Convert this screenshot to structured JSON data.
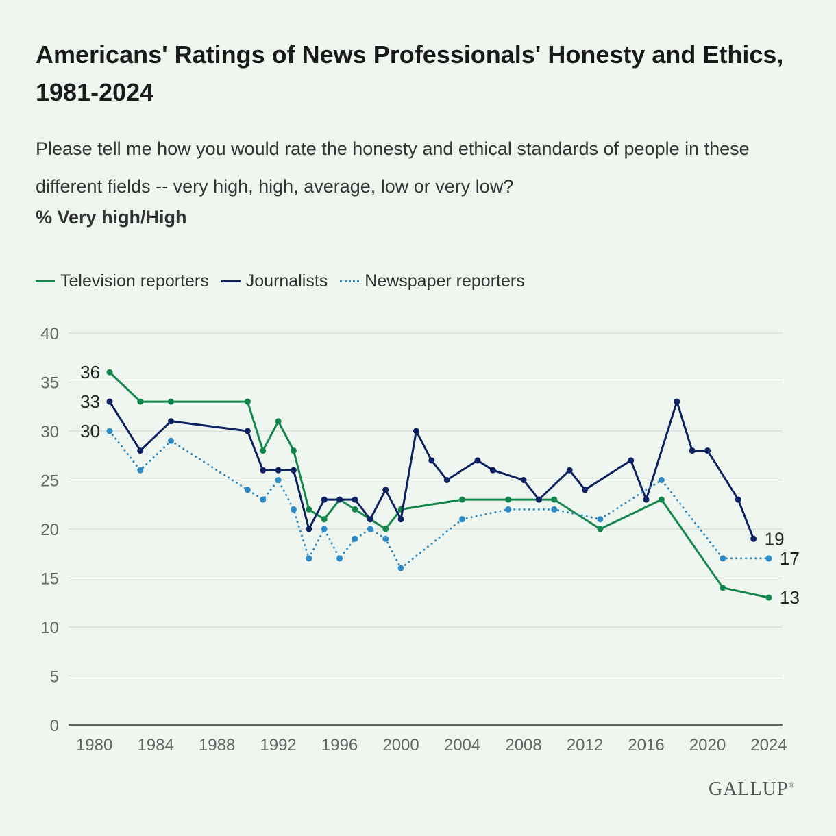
{
  "title": "Americans' Ratings of News Professionals' Honesty and Ethics, 1981-2024",
  "subtitle": "Please tell me how you would rate the honesty and ethical standards of people in these different fields -- very high, high, average, low or very low?",
  "unit_label": "% Very high/High",
  "brand": "GALLUP",
  "brand_mark": "®",
  "chart_data": {
    "type": "line",
    "title": "Americans' Ratings of News Professionals' Honesty and Ethics, 1981-2024",
    "xlabel": "",
    "ylabel": "% Very high/High",
    "xlim": [
      1980,
      2024
    ],
    "ylim": [
      0,
      40
    ],
    "xticks": [
      "1980",
      "1984",
      "1988",
      "1992",
      "1996",
      "2000",
      "2004",
      "2008",
      "2012",
      "2016",
      "2020",
      "2024"
    ],
    "yticks": [
      "0",
      "5",
      "10",
      "15",
      "20",
      "25",
      "30",
      "35",
      "40"
    ],
    "grid": true,
    "legend_position": "top-left",
    "series": [
      {
        "name": "Television reporters",
        "color": "#13874b",
        "style": "solid",
        "x": [
          1981,
          1983,
          1985,
          1990,
          1991,
          1992,
          1993,
          1994,
          1995,
          1996,
          1997,
          1998,
          1999,
          2000,
          2004,
          2007,
          2009,
          2010,
          2013,
          2017,
          2021,
          2024
        ],
        "values": [
          36,
          33,
          33,
          33,
          28,
          31,
          28,
          22,
          21,
          23,
          22,
          21,
          20,
          22,
          23,
          23,
          23,
          23,
          20,
          23,
          14,
          13
        ],
        "labels": [
          {
            "x": 1981,
            "text": "36",
            "side": "left"
          },
          {
            "x": 2024,
            "text": "13",
            "side": "right"
          }
        ]
      },
      {
        "name": "Journalists",
        "color": "#0d2060",
        "style": "solid",
        "x": [
          1981,
          1983,
          1985,
          1990,
          1991,
          1992,
          1993,
          1994,
          1995,
          1996,
          1997,
          1998,
          1999,
          2000,
          2001,
          2002,
          2003,
          2005,
          2006,
          2008,
          2009,
          2011,
          2012,
          2015,
          2016,
          2018,
          2019,
          2020,
          2022,
          2023
        ],
        "values": [
          33,
          28,
          31,
          30,
          26,
          26,
          26,
          20,
          23,
          23,
          23,
          21,
          24,
          21,
          30,
          27,
          25,
          27,
          26,
          25,
          23,
          26,
          24,
          27,
          23,
          33,
          28,
          28,
          23,
          19
        ],
        "labels": [
          {
            "x": 1981,
            "text": "33",
            "side": "left"
          },
          {
            "x": 2023,
            "text": "19",
            "side": "right"
          }
        ]
      },
      {
        "name": "Newspaper reporters",
        "color": "#2e8ac4",
        "style": "dotted",
        "x": [
          1981,
          1983,
          1985,
          1990,
          1991,
          1992,
          1993,
          1994,
          1995,
          1996,
          1997,
          1998,
          1999,
          2000,
          2004,
          2007,
          2010,
          2013,
          2017,
          2021,
          2024
        ],
        "values": [
          30,
          26,
          29,
          24,
          23,
          25,
          22,
          17,
          20,
          17,
          19,
          20,
          19,
          16,
          21,
          22,
          22,
          21,
          25,
          17,
          17
        ],
        "labels": [
          {
            "x": 1981,
            "text": "30",
            "side": "left"
          },
          {
            "x": 2024,
            "text": "17",
            "side": "right"
          }
        ]
      }
    ]
  }
}
